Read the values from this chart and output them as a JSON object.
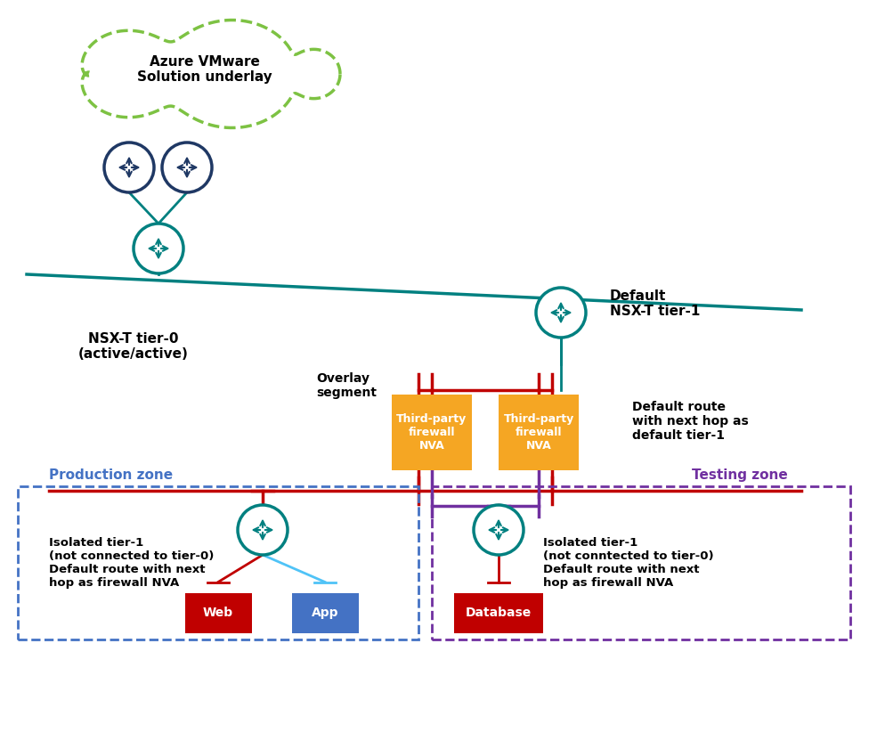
{
  "title": "",
  "bg_color": "#ffffff",
  "cloud_label": "Azure VMware\nSolution underlay",
  "cloud_color": "#7dc243",
  "router_color_dark": "#1f3864",
  "router_color_teal": "#008080",
  "tier0_label": "NSX-T tier-0\n(active/active)",
  "tier1_default_label": "Default\nNSX-T tier-1",
  "overlay_label": "Overlay\nsegment",
  "nva_label": "Third-party\nfirewall\nNVA",
  "nva_color": "#f5a623",
  "nva_text_color": "#ffffff",
  "default_route_label": "Default route\nwith next hop as\ndefault tier-1",
  "prod_zone_label": "Production zone",
  "test_zone_label": "Testing zone",
  "zone_label_color": "#4472c4",
  "test_zone_label_color": "#7030a0",
  "prod_box_color": "#4472c4",
  "test_box_color": "#7030a0",
  "isolated_label_prod": "Isolated tier-1\n(not connected to tier-0)\nDefault route with next\nhop as firewall NVA",
  "isolated_label_test": "Isolated tier-1\n(not conntected to tier-0)\nDefault route with next\nhop as firewall NVA",
  "web_label": "Web",
  "app_label": "App",
  "db_label": "Database",
  "web_color": "#c00000",
  "app_color": "#4472c4",
  "db_color": "#c00000",
  "segment_color": "#c00000",
  "prod_segment_color": "#c00000",
  "prod_inner_segment_color": "#c55a11",
  "purple_line_color": "#7030a0",
  "teal_line_color": "#008080",
  "light_blue_color": "#4fc3f7"
}
